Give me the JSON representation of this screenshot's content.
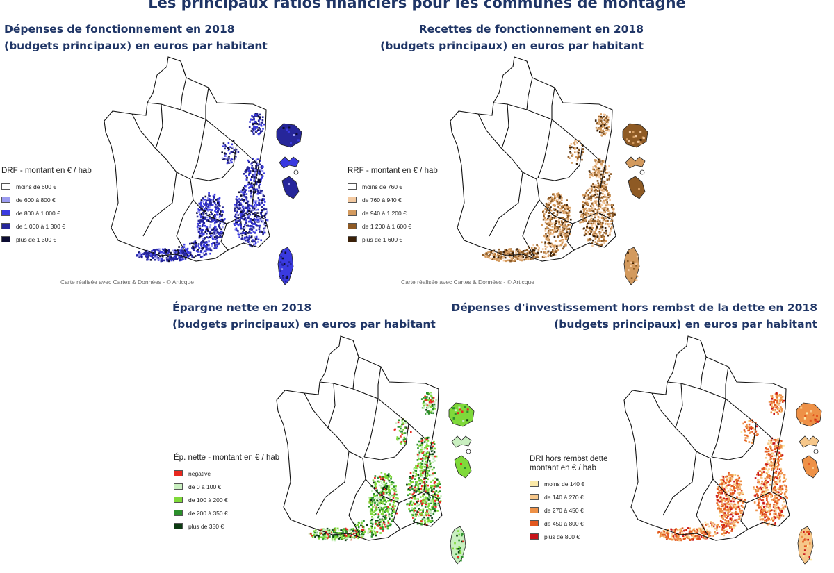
{
  "title": "Les principaux ratios financiers pour les communes de montagne",
  "maps": [
    {
      "id": "drf",
      "title_line1": "Dépenses de fonctionnement en 2018",
      "title_line2": "(budgets principaux) en euros par habitant",
      "legend_title": "DRF - montant en € / hab",
      "legend": [
        {
          "label": "moins de 600 €",
          "color": "#ffffff"
        },
        {
          "label": "de 600 à 800 €",
          "color": "#9b9bf0"
        },
        {
          "label": "de 800 à 1 000 €",
          "color": "#3a3ae0"
        },
        {
          "label": "de 1 000 à 1 300 €",
          "color": "#26269a"
        },
        {
          "label": "plus de 1 300 €",
          "color": "#0c0c33"
        }
      ],
      "credit": "Carte réalisée avec Cartes & Données - © Articque"
    },
    {
      "id": "rrf",
      "title_line1": "Recettes de fonctionnement en 2018",
      "title_line2": "(budgets principaux) en euros par habitant",
      "legend_title": "RRF - montant en € / hab",
      "legend": [
        {
          "label": "moins de 760 €",
          "color": "#ffffff"
        },
        {
          "label": "de 760 à 940 €",
          "color": "#f3c9a0"
        },
        {
          "label": "de 940 à 1 200 €",
          "color": "#d39a5e"
        },
        {
          "label": "de 1 200 à 1 600 €",
          "color": "#8e5a24"
        },
        {
          "label": "plus de 1 600 €",
          "color": "#3a2008"
        }
      ],
      "credit": "Carte réalisée avec Cartes & Données - © Articque"
    },
    {
      "id": "epargne",
      "title_line1": "Épargne nette en 2018",
      "title_line2": "(budgets principaux) en euros par habitant",
      "legend_title": "Ép. nette - montant en € / hab",
      "legend": [
        {
          "label": "négative",
          "color": "#e8281e"
        },
        {
          "label": "de 0 à 100 €",
          "color": "#c9efc0"
        },
        {
          "label": "de 100 à 200 €",
          "color": "#7fd93a"
        },
        {
          "label": "de 200 à 350 €",
          "color": "#2b8f2b"
        },
        {
          "label": "plus de 350 €",
          "color": "#0d3b12"
        }
      ]
    },
    {
      "id": "dri",
      "title_line1": "Dépenses d'investissement hors rembst de la dette en 2018",
      "title_line2": "(budgets principaux) en euros par habitant",
      "legend_title": "DRI hors rembst dette montant en € / hab",
      "legend": [
        {
          "label": "moins de 140 €",
          "color": "#fbe9a8"
        },
        {
          "label": "de 140 à 270 €",
          "color": "#f6c78a"
        },
        {
          "label": "de 270 à 450 €",
          "color": "#ee9147"
        },
        {
          "label": "de 450 à 800 €",
          "color": "#e2571f"
        },
        {
          "label": "plus de 800 €",
          "color": "#c8141a"
        }
      ]
    }
  ]
}
